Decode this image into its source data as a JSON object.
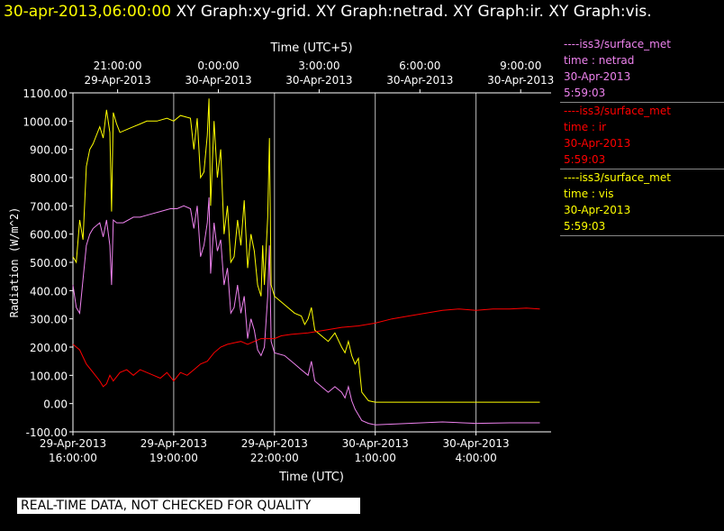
{
  "header": {
    "timestamp": "30-apr-2013,06:00:00",
    "titles": "XY Graph:xy-grid.  XY Graph:netrad.  XY Graph:ir.  XY Graph:vis."
  },
  "legend": [
    {
      "source": "----iss3/surface_met",
      "field": "time : netrad",
      "date": "30-Apr-2013",
      "time": "5:59:03",
      "color": "#ee82ee"
    },
    {
      "source": "----iss3/surface_met",
      "field": "time : ir",
      "date": "30-Apr-2013",
      "time": "5:59:03",
      "color": "#ff0000"
    },
    {
      "source": "----iss3/surface_met",
      "field": "time : vis",
      "date": "30-Apr-2013",
      "time": "5:59:03",
      "color": "#ffff00"
    }
  ],
  "banner": "REAL-TIME DATA, NOT CHECKED FOR QUALITY",
  "chart_data": {
    "type": "line",
    "ylabel": "Radiation (W/m^2)",
    "xlabel": "Time (UTC)",
    "x2label": "Time (UTC+5)",
    "ylim": [
      -100,
      1100
    ],
    "xlim": [
      "29-Apr-2013 16:00",
      "30-Apr-2013 06:00"
    ],
    "yticks": [
      "1100.00",
      "1000.00",
      "900.00",
      "800.00",
      "700.00",
      "600.00",
      "500.00",
      "400.00",
      "300.00",
      "200.00",
      "100.00",
      "0.00",
      "-100.00"
    ],
    "bottom_ticks": [
      {
        "date": "29-Apr-2013",
        "time": "16:00:00"
      },
      {
        "date": "29-Apr-2013",
        "time": "19:00:00"
      },
      {
        "date": "29-Apr-2013",
        "time": "22:00:00"
      },
      {
        "date": "30-Apr-2013",
        "time": "1:00:00"
      },
      {
        "date": "30-Apr-2013",
        "time": "4:00:00"
      }
    ],
    "top_ticks": [
      {
        "time": "21:00:00",
        "date": "29-Apr-2013"
      },
      {
        "time": "0:00:00",
        "date": "30-Apr-2013"
      },
      {
        "time": "3:00:00",
        "date": "30-Apr-2013"
      },
      {
        "time": "6:00:00",
        "date": "30-Apr-2013"
      },
      {
        "time": "9:00:00",
        "date": "30-Apr-2013"
      }
    ],
    "grid": "vertical",
    "series": [
      {
        "name": "vis",
        "color": "#ffff00",
        "points": [
          [
            0,
            520
          ],
          [
            0.1,
            500
          ],
          [
            0.2,
            650
          ],
          [
            0.3,
            580
          ],
          [
            0.4,
            840
          ],
          [
            0.5,
            900
          ],
          [
            0.6,
            920
          ],
          [
            0.8,
            980
          ],
          [
            0.9,
            940
          ],
          [
            1.0,
            1040
          ],
          [
            1.1,
            960
          ],
          [
            1.15,
            680
          ],
          [
            1.2,
            1030
          ],
          [
            1.3,
            990
          ],
          [
            1.4,
            960
          ],
          [
            1.6,
            970
          ],
          [
            1.8,
            980
          ],
          [
            2.0,
            990
          ],
          [
            2.2,
            1000
          ],
          [
            2.5,
            1000
          ],
          [
            2.8,
            1010
          ],
          [
            3.0,
            1000
          ],
          [
            3.2,
            1020
          ],
          [
            3.5,
            1010
          ],
          [
            3.6,
            900
          ],
          [
            3.7,
            1010
          ],
          [
            3.8,
            800
          ],
          [
            3.9,
            820
          ],
          [
            4.0,
            950
          ],
          [
            4.05,
            1080
          ],
          [
            4.1,
            700
          ],
          [
            4.2,
            1000
          ],
          [
            4.3,
            800
          ],
          [
            4.4,
            900
          ],
          [
            4.5,
            600
          ],
          [
            4.6,
            700
          ],
          [
            4.7,
            500
          ],
          [
            4.8,
            520
          ],
          [
            4.9,
            650
          ],
          [
            5.0,
            560
          ],
          [
            5.1,
            720
          ],
          [
            5.2,
            480
          ],
          [
            5.3,
            600
          ],
          [
            5.4,
            540
          ],
          [
            5.5,
            420
          ],
          [
            5.6,
            380
          ],
          [
            5.65,
            560
          ],
          [
            5.7,
            420
          ],
          [
            5.8,
            660
          ],
          [
            5.85,
            940
          ],
          [
            5.9,
            420
          ],
          [
            6.0,
            380
          ],
          [
            6.2,
            360
          ],
          [
            6.4,
            340
          ],
          [
            6.6,
            320
          ],
          [
            6.8,
            310
          ],
          [
            6.9,
            280
          ],
          [
            7.0,
            300
          ],
          [
            7.1,
            340
          ],
          [
            7.2,
            260
          ],
          [
            7.4,
            240
          ],
          [
            7.6,
            220
          ],
          [
            7.8,
            250
          ],
          [
            8.0,
            200
          ],
          [
            8.1,
            180
          ],
          [
            8.2,
            220
          ],
          [
            8.3,
            170
          ],
          [
            8.4,
            140
          ],
          [
            8.5,
            160
          ],
          [
            8.6,
            40
          ],
          [
            8.8,
            10
          ],
          [
            9.0,
            5
          ],
          [
            9.5,
            5
          ],
          [
            10,
            5
          ],
          [
            11,
            5
          ],
          [
            12,
            5
          ],
          [
            13,
            5
          ],
          [
            13.9,
            5
          ]
        ]
      },
      {
        "name": "netrad",
        "color": "#ee82ee",
        "points": [
          [
            0,
            420
          ],
          [
            0.1,
            340
          ],
          [
            0.2,
            320
          ],
          [
            0.3,
            440
          ],
          [
            0.4,
            560
          ],
          [
            0.5,
            600
          ],
          [
            0.6,
            620
          ],
          [
            0.8,
            640
          ],
          [
            0.9,
            590
          ],
          [
            1.0,
            650
          ],
          [
            1.1,
            560
          ],
          [
            1.15,
            420
          ],
          [
            1.2,
            650
          ],
          [
            1.3,
            640
          ],
          [
            1.5,
            640
          ],
          [
            1.8,
            660
          ],
          [
            2.0,
            660
          ],
          [
            2.3,
            670
          ],
          [
            2.6,
            680
          ],
          [
            2.9,
            690
          ],
          [
            3.1,
            690
          ],
          [
            3.3,
            700
          ],
          [
            3.5,
            690
          ],
          [
            3.6,
            620
          ],
          [
            3.7,
            700
          ],
          [
            3.8,
            520
          ],
          [
            3.9,
            560
          ],
          [
            4.0,
            640
          ],
          [
            4.05,
            730
          ],
          [
            4.1,
            460
          ],
          [
            4.2,
            640
          ],
          [
            4.3,
            540
          ],
          [
            4.4,
            580
          ],
          [
            4.5,
            420
          ],
          [
            4.6,
            480
          ],
          [
            4.7,
            320
          ],
          [
            4.8,
            340
          ],
          [
            4.9,
            420
          ],
          [
            5.0,
            320
          ],
          [
            5.1,
            380
          ],
          [
            5.2,
            230
          ],
          [
            5.3,
            300
          ],
          [
            5.4,
            260
          ],
          [
            5.5,
            190
          ],
          [
            5.6,
            170
          ],
          [
            5.7,
            200
          ],
          [
            5.8,
            380
          ],
          [
            5.85,
            560
          ],
          [
            5.9,
            220
          ],
          [
            6.0,
            180
          ],
          [
            6.3,
            170
          ],
          [
            6.6,
            140
          ],
          [
            6.8,
            120
          ],
          [
            7.0,
            100
          ],
          [
            7.1,
            150
          ],
          [
            7.2,
            80
          ],
          [
            7.4,
            60
          ],
          [
            7.6,
            40
          ],
          [
            7.8,
            60
          ],
          [
            8.0,
            40
          ],
          [
            8.1,
            20
          ],
          [
            8.2,
            60
          ],
          [
            8.3,
            10
          ],
          [
            8.4,
            -20
          ],
          [
            8.6,
            -60
          ],
          [
            8.8,
            -70
          ],
          [
            9.0,
            -75
          ],
          [
            10,
            -70
          ],
          [
            11,
            -65
          ],
          [
            12,
            -70
          ],
          [
            13,
            -68
          ],
          [
            13.9,
            -68
          ]
        ]
      },
      {
        "name": "ir",
        "color": "#ff0000",
        "points": [
          [
            0,
            210
          ],
          [
            0.2,
            190
          ],
          [
            0.4,
            140
          ],
          [
            0.6,
            110
          ],
          [
            0.8,
            80
          ],
          [
            0.9,
            60
          ],
          [
            1.0,
            70
          ],
          [
            1.1,
            100
          ],
          [
            1.2,
            80
          ],
          [
            1.4,
            110
          ],
          [
            1.6,
            120
          ],
          [
            1.8,
            100
          ],
          [
            2.0,
            120
          ],
          [
            2.2,
            110
          ],
          [
            2.4,
            100
          ],
          [
            2.6,
            90
          ],
          [
            2.8,
            110
          ],
          [
            3.0,
            80
          ],
          [
            3.2,
            110
          ],
          [
            3.4,
            100
          ],
          [
            3.6,
            120
          ],
          [
            3.8,
            140
          ],
          [
            4.0,
            150
          ],
          [
            4.2,
            180
          ],
          [
            4.4,
            200
          ],
          [
            4.6,
            210
          ],
          [
            4.8,
            215
          ],
          [
            5.0,
            220
          ],
          [
            5.2,
            210
          ],
          [
            5.4,
            220
          ],
          [
            5.6,
            230
          ],
          [
            5.8,
            230
          ],
          [
            6.0,
            230
          ],
          [
            6.2,
            240
          ],
          [
            6.5,
            245
          ],
          [
            7.0,
            250
          ],
          [
            7.5,
            260
          ],
          [
            8.0,
            270
          ],
          [
            8.5,
            275
          ],
          [
            9.0,
            285
          ],
          [
            9.5,
            300
          ],
          [
            10,
            310
          ],
          [
            10.5,
            320
          ],
          [
            11,
            330
          ],
          [
            11.5,
            335
          ],
          [
            12,
            330
          ],
          [
            12.5,
            335
          ],
          [
            13,
            335
          ],
          [
            13.5,
            338
          ],
          [
            13.9,
            335
          ]
        ]
      }
    ]
  }
}
